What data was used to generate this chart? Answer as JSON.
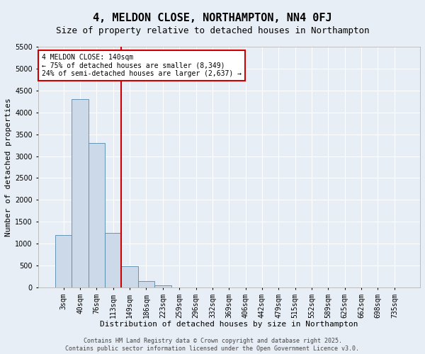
{
  "title": "4, MELDON CLOSE, NORTHAMPTON, NN4 0FJ",
  "subtitle": "Size of property relative to detached houses in Northampton",
  "xlabel": "Distribution of detached houses by size in Northampton",
  "ylabel": "Number of detached properties",
  "bar_labels": [
    "3sqm",
    "40sqm",
    "76sqm",
    "113sqm",
    "149sqm",
    "186sqm",
    "223sqm",
    "259sqm",
    "296sqm",
    "332sqm",
    "369sqm",
    "406sqm",
    "442sqm",
    "479sqm",
    "515sqm",
    "552sqm",
    "589sqm",
    "625sqm",
    "662sqm",
    "698sqm",
    "735sqm"
  ],
  "bar_values": [
    1200,
    4300,
    3300,
    1250,
    480,
    150,
    50,
    0,
    0,
    0,
    0,
    0,
    0,
    0,
    0,
    0,
    0,
    0,
    0,
    0,
    0
  ],
  "bar_color": "#ccd9e8",
  "bar_edge_color": "#5588aa",
  "ylim": [
    0,
    5500
  ],
  "yticks": [
    0,
    500,
    1000,
    1500,
    2000,
    2500,
    3000,
    3500,
    4000,
    4500,
    5000,
    5500
  ],
  "vline_color": "#cc0000",
  "annotation_title": "4 MELDON CLOSE: 140sqm",
  "annotation_line1": "← 75% of detached houses are smaller (8,349)",
  "annotation_line2": "24% of semi-detached houses are larger (2,637) →",
  "annotation_box_color": "#ffffff",
  "annotation_box_edge": "#cc0000",
  "background_color": "#e8eef5",
  "grid_color": "#ffffff",
  "title_fontsize": 11,
  "subtitle_fontsize": 9,
  "axis_label_fontsize": 8,
  "tick_fontsize": 7,
  "footer_line1": "Contains HM Land Registry data © Crown copyright and database right 2025.",
  "footer_line2": "Contains public sector information licensed under the Open Government Licence v3.0."
}
